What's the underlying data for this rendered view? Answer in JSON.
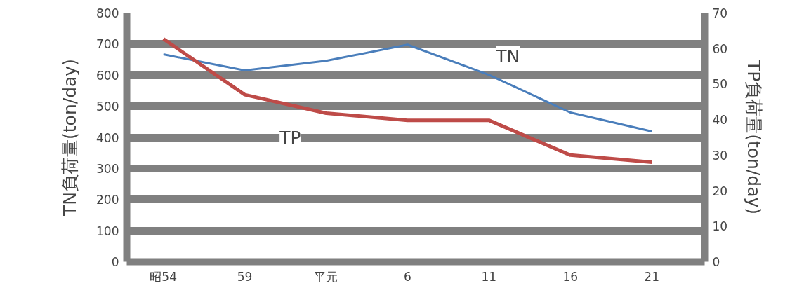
{
  "chart_data": {
    "type": "line",
    "categories": [
      "昭54",
      "59",
      "平元",
      "6",
      "11",
      "16",
      "21"
    ],
    "series": [
      {
        "name": "TN",
        "color": "#4a7ebb",
        "values": [
          667,
          615,
          646,
          698,
          601,
          480,
          419
        ]
      },
      {
        "name": "TP",
        "color": "#be4b48",
        "axis": "y2",
        "values": [
          62.7,
          47,
          41.8,
          39.8,
          39.8,
          30,
          28
        ]
      }
    ],
    "ylabel": "TN負荷量(ton/day)",
    "y2label": "TP負荷量(ton/day)",
    "ylim": [
      0,
      800
    ],
    "yticks": [
      0,
      100,
      200,
      300,
      400,
      500,
      600,
      700,
      800
    ],
    "y2lim": [
      0,
      70
    ],
    "y2ticks": [
      0,
      10,
      20,
      30,
      40,
      50,
      60,
      70
    ],
    "grid": "y",
    "legend": false,
    "marker": "none",
    "line_style": "solid"
  }
}
